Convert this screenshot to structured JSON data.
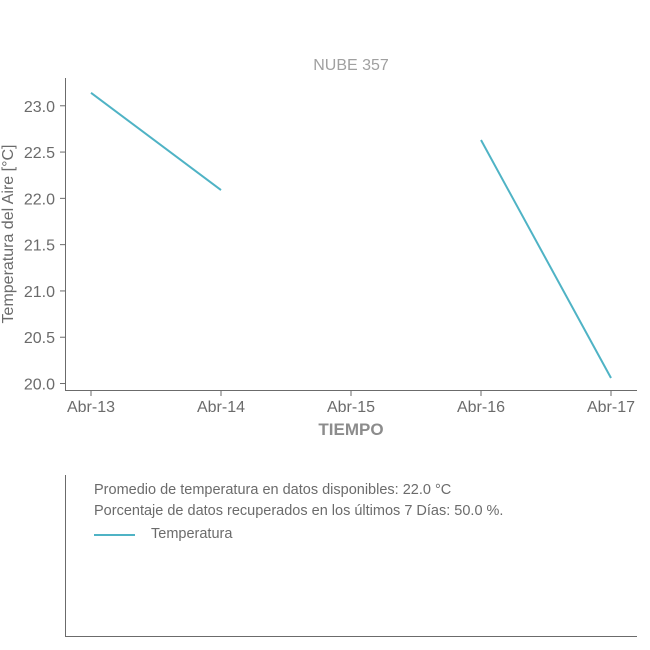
{
  "chart_data": {
    "type": "line",
    "title": "NUBE 357",
    "xlabel": "TIEMPO",
    "ylabel": "Temperatura del Aire [°C]",
    "categories": [
      "Abr-13",
      "Abr-14",
      "Abr-15",
      "Abr-16",
      "Abr-17"
    ],
    "ylim": [
      19.93,
      23.3
    ],
    "yticks": [
      "20.0",
      "20.5",
      "21.0",
      "21.5",
      "22.0",
      "22.5",
      "23.0"
    ],
    "ytick_values": [
      20.0,
      20.5,
      21.0,
      21.5,
      22.0,
      22.5,
      23.0
    ],
    "grid": false,
    "series": [
      {
        "name": "Temperatura",
        "color": "#4fb3c5",
        "segments": [
          [
            {
              "x": 0,
              "y": 23.14
            },
            {
              "x": 1,
              "y": 22.09
            }
          ],
          [
            {
              "x": 3,
              "y": 22.63
            },
            {
              "x": 4,
              "y": 20.06
            }
          ]
        ]
      }
    ]
  },
  "info": {
    "average_text": "Promedio de temperatura en datos disponibles: 22.0 °C",
    "recovered_text": "Porcentaje de datos recuperados en los últimos 7 Días: 50.0 %.",
    "legend_label": "Temperatura"
  }
}
